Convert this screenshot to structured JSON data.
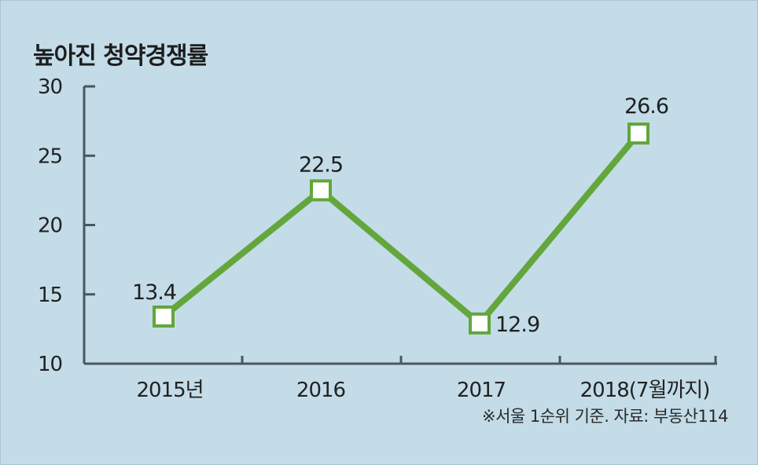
{
  "title": "높아진 청약경쟁률",
  "source": "※서울 1순위 기준. 자료: 부동산114",
  "colors": {
    "background": "#c3dce8",
    "line": "#63a63b",
    "marker_fill": "#ffffff",
    "axis": "#4a5660"
  },
  "chart_data": {
    "type": "line",
    "title": "높아진 청약경쟁률",
    "xlabel": "",
    "ylabel": "",
    "categories": [
      "2015년",
      "2016",
      "2017",
      "2018(7월까지)"
    ],
    "values": [
      13.4,
      22.5,
      12.9,
      26.6
    ],
    "data_labels": [
      "13.4",
      "22.5",
      "12.9",
      "26.6"
    ],
    "ylim": [
      10,
      30
    ],
    "yticks": [
      10,
      15,
      20,
      25,
      30
    ],
    "grid": false,
    "legend": "none"
  }
}
